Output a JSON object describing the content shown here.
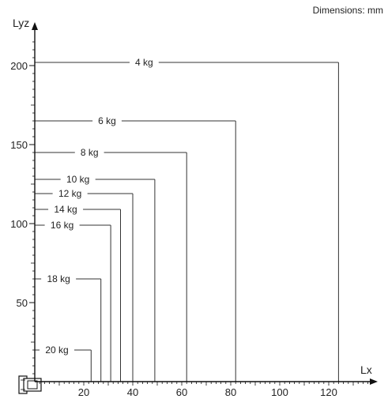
{
  "note": "Dimensions: mm",
  "chart_data": {
    "type": "line",
    "x_axis_label": "Lx",
    "y_axis_label": "Lyz",
    "x_ticks": [
      20,
      40,
      60,
      80,
      100,
      120
    ],
    "y_ticks": [
      50,
      100,
      150,
      200
    ],
    "xlim": [
      0,
      130
    ],
    "ylim": [
      0,
      212
    ],
    "series": [
      {
        "name": "4 kg",
        "lx": 124,
        "lyz": 202
      },
      {
        "name": "6 kg",
        "lx": 82,
        "lyz": 165
      },
      {
        "name": "8 kg",
        "lx": 62,
        "lyz": 145
      },
      {
        "name": "10 kg",
        "lx": 49,
        "lyz": 128
      },
      {
        "name": "12 kg",
        "lx": 40,
        "lyz": 119
      },
      {
        "name": "14 kg",
        "lx": 35,
        "lyz": 109
      },
      {
        "name": "16 kg",
        "lx": 31,
        "lyz": 99
      },
      {
        "name": "18 kg",
        "lx": 27,
        "lyz": 65
      },
      {
        "name": "20 kg",
        "lx": 23,
        "lyz": 20
      }
    ]
  }
}
